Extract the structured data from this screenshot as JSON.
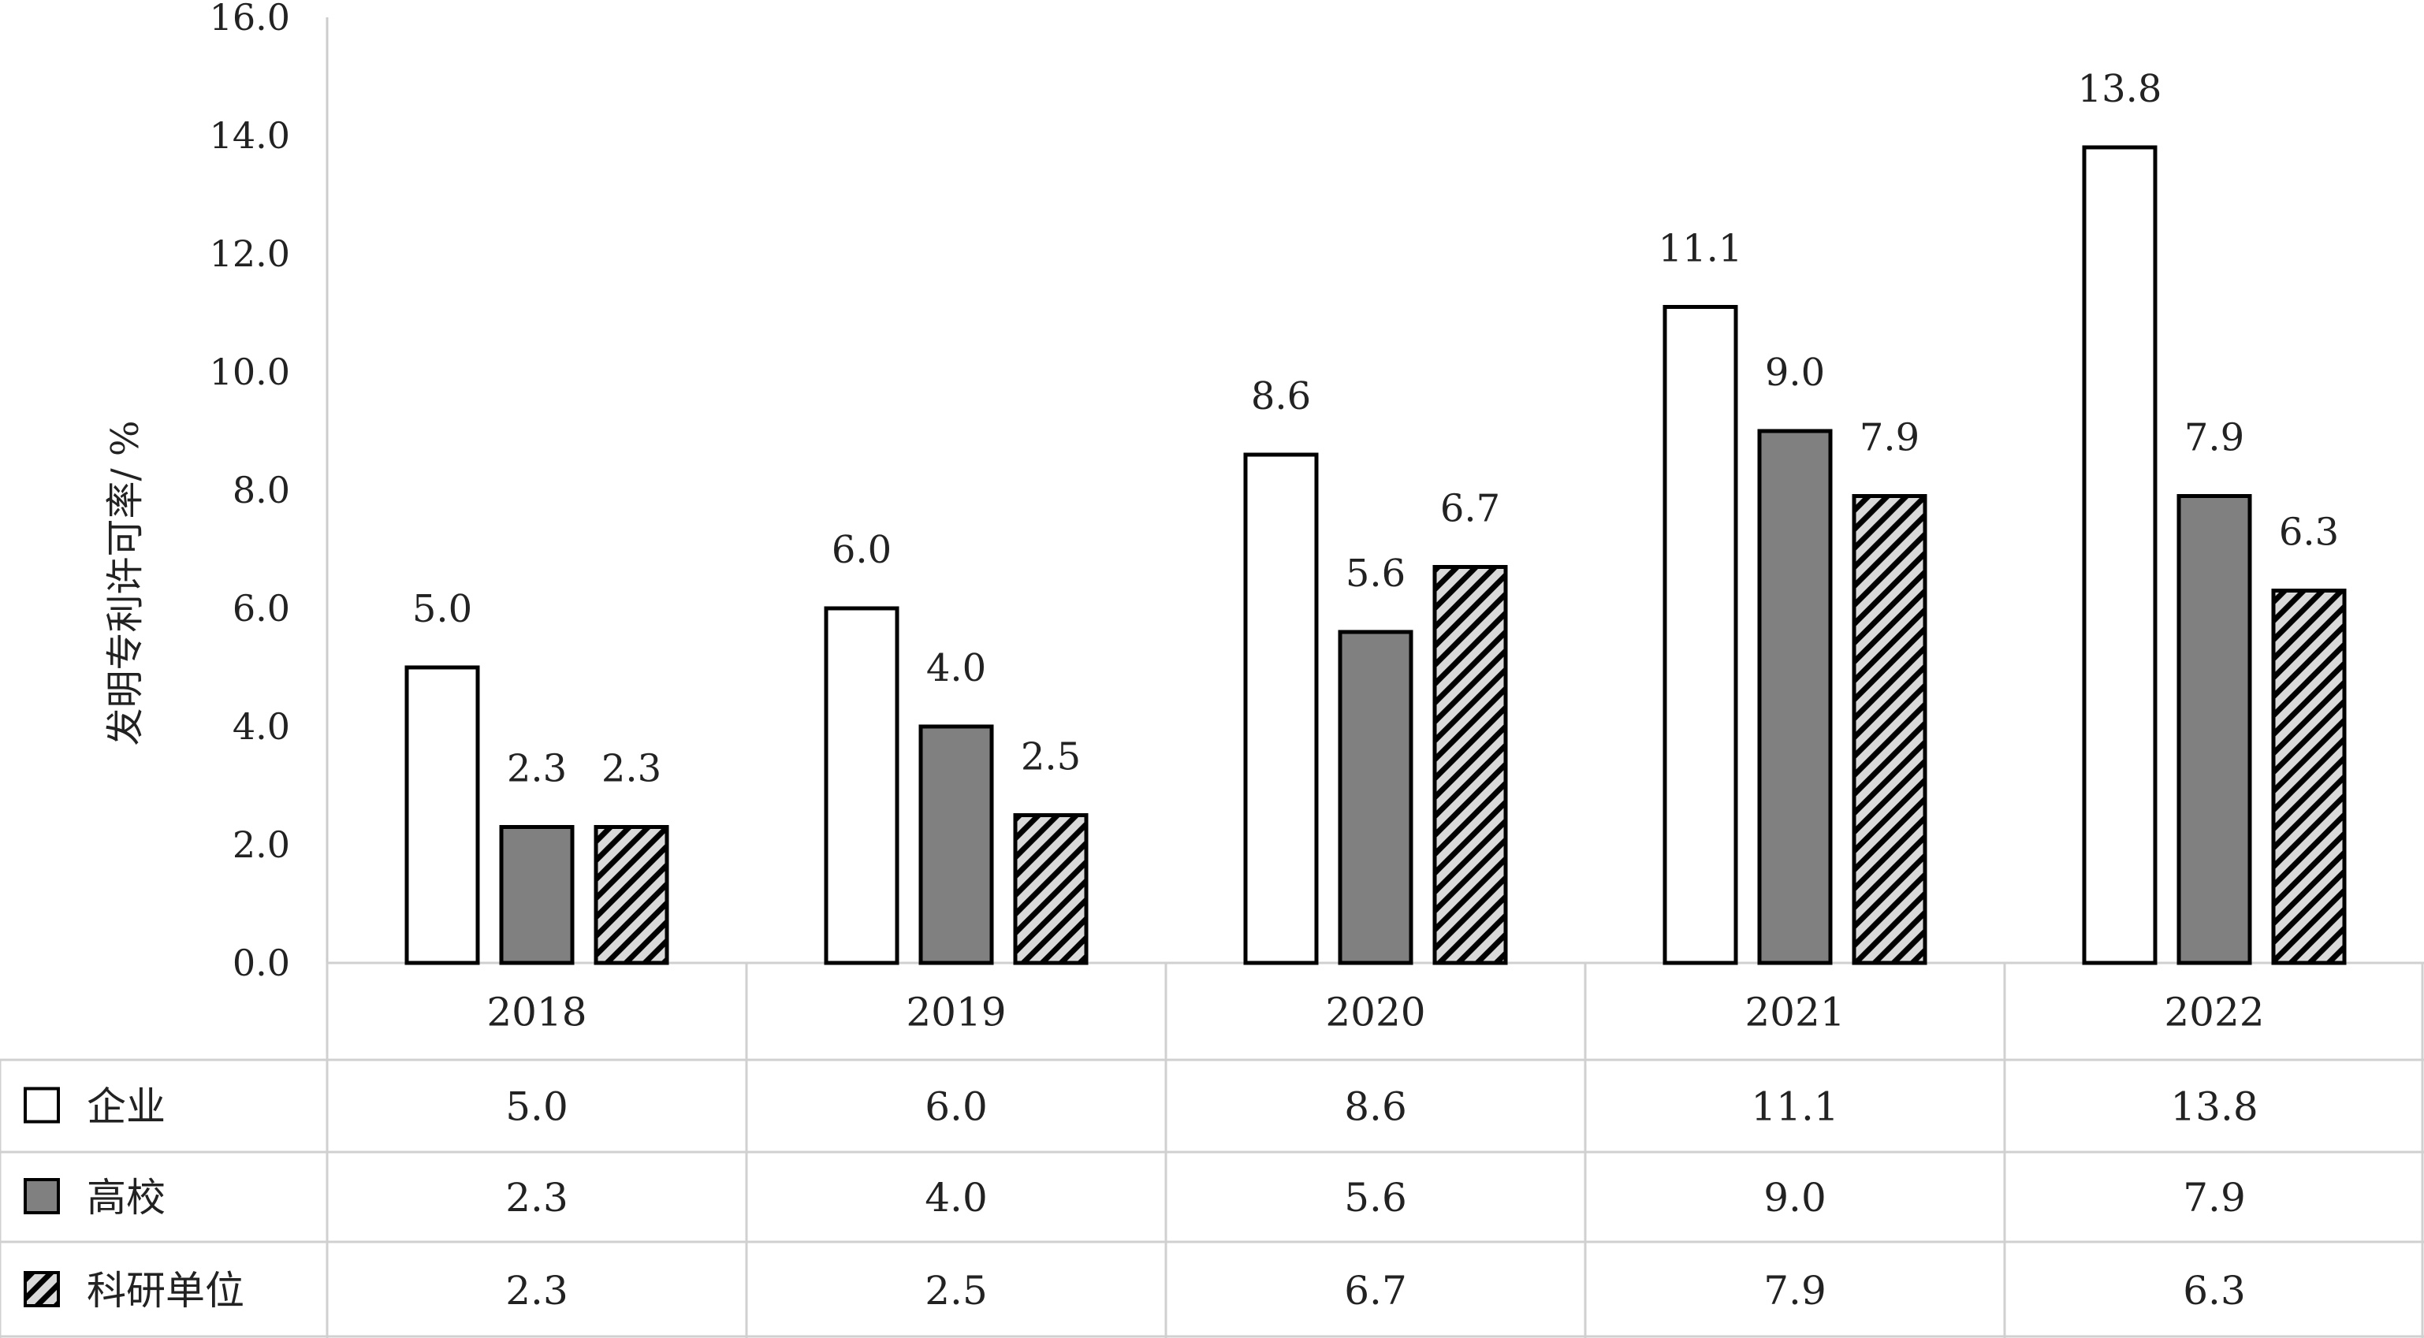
{
  "chart_data": {
    "type": "bar",
    "ylabel": "发明专利许可率/ %",
    "ylim": [
      0,
      16
    ],
    "yticks": [
      "0.0",
      "2.0",
      "4.0",
      "6.0",
      "8.0",
      "10.0",
      "12.0",
      "14.0",
      "16.0"
    ],
    "categories": [
      "2018",
      "2019",
      "2020",
      "2021",
      "2022"
    ],
    "series": [
      {
        "name": "企业",
        "pattern": "white",
        "values": [
          5.0,
          6.0,
          8.6,
          11.1,
          13.8
        ],
        "labels": [
          "5.0",
          "6.0",
          "8.6",
          "11.1",
          "13.8"
        ]
      },
      {
        "name": "高校",
        "pattern": "gray",
        "values": [
          2.3,
          4.0,
          5.6,
          9.0,
          7.9
        ],
        "labels": [
          "2.3",
          "4.0",
          "5.6",
          "9.0",
          "7.9"
        ]
      },
      {
        "name": "科研单位",
        "pattern": "diagonal-hatch",
        "values": [
          2.3,
          2.5,
          6.7,
          7.9,
          6.3
        ],
        "labels": [
          "2.3",
          "2.5",
          "6.7",
          "7.9",
          "6.3"
        ]
      }
    ],
    "data_table": true,
    "grid": false,
    "colors": {
      "gray_fill": "#808080",
      "hatch_bg": "#d9d9d9",
      "hatch_line": "#000000",
      "outline": "#000000",
      "table_line": "#d0d0d0"
    }
  }
}
